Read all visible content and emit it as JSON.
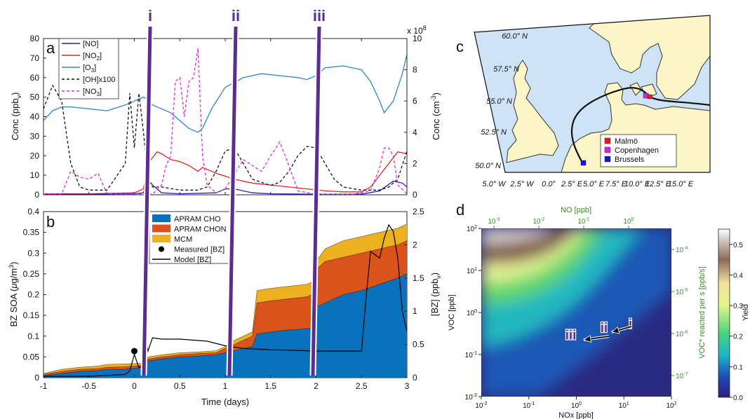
{
  "panels": {
    "a": "a",
    "b": "b",
    "c": "c",
    "d": "d"
  },
  "markers": [
    "i",
    "ii",
    "iii"
  ],
  "panel_a": {
    "ylabel": "Conc (ppb_v)",
    "ylabel_main": "Conc (ppb",
    "ylabel_sub": "v",
    "y2label_main": "Conc (cm",
    "y2label_sup": "-3",
    "y2_exponent": "x 10",
    "y2_exponent_power": "8",
    "legend": [
      {
        "label": "[NO]",
        "color": "#1f1fbf",
        "dash": false
      },
      {
        "label": "[NO",
        "sub": "2",
        "tail": "]",
        "color": "#e8231f",
        "dash": false
      },
      {
        "label": "[O",
        "sub": "3",
        "tail": "]",
        "color": "#2c87c6",
        "dash": false
      },
      {
        "label": "[OH]x100",
        "color": "#111111",
        "dash": true
      },
      {
        "label": "[NO",
        "sub": "3",
        "tail": "]",
        "color": "#e628e6",
        "dash": true
      }
    ]
  },
  "panel_b": {
    "ylabel_main": "BZ SOA (",
    "ylabel_mu": "μ",
    "ylabel_tail": "g/m",
    "ylabel_sup": "3",
    "y2label_main": "[BZ] (ppb",
    "y2label_sub": "v",
    "xlabel": "Time (days)",
    "legend": [
      {
        "label": "APRAM CHO",
        "color": "#0a72bd",
        "kind": "box"
      },
      {
        "label": "APRAM CHON",
        "color": "#d9531b",
        "kind": "box"
      },
      {
        "label": "MCM",
        "color": "#edb021",
        "kind": "box"
      },
      {
        "label": "Measured [BZ]",
        "color": "#000000",
        "kind": "dot"
      },
      {
        "label": "Model [BZ]",
        "color": "#000000",
        "kind": "line"
      }
    ]
  },
  "panel_c": {
    "legend": [
      {
        "label": "Malmö",
        "color": "#e51a1a"
      },
      {
        "label": "Copenhagen",
        "color": "#e020e0"
      },
      {
        "label": "Brussels",
        "color": "#1515d8"
      }
    ],
    "lat_labels": [
      "60.0° N",
      "57.5° N",
      "55.0° N",
      "52.5° N",
      "50.0° N"
    ],
    "lon_labels": [
      "5.0° W",
      "2.5° W",
      "0.0°",
      "2.5° E",
      "5.0° E",
      "7.5° E",
      "10.0° E",
      "12.5° E",
      "15.0° E"
    ]
  },
  "panel_d": {
    "xlabel": "NOx [ppb]",
    "ylabel": "VOC [ppb]",
    "top_label": "NO [ppb]",
    "right_label": "VOC* reacted per s [ppb/s]",
    "colorbar_label": "Yield",
    "colorbar_ticks": [
      "0.0",
      "0.1",
      "0.2",
      "0.3",
      "0.4",
      "0.5"
    ],
    "markers": [
      "iii",
      "ii",
      "i"
    ]
  },
  "colors": {
    "marker_line": "#5b2d8e",
    "top_axis": "#3a8f24",
    "sea": "#cfe3f7",
    "land": "#fbf5c8"
  },
  "chart_data": [
    {
      "type": "line",
      "panel": "a",
      "x_range": [
        -1,
        3
      ],
      "y_range": [
        0,
        80
      ],
      "y2_range": [
        0,
        10
      ],
      "y2_scale": "x 10^8",
      "x_ticks": [
        -1,
        -0.5,
        0,
        0.5,
        1,
        1.5,
        2,
        2.5,
        3
      ],
      "y_ticks": [
        0,
        10,
        20,
        30,
        40,
        50,
        60,
        70,
        80
      ],
      "y2_ticks": [
        0,
        2,
        4,
        6,
        8,
        10
      ],
      "series": [
        {
          "name": "[O3]",
          "axis": "left",
          "x": [
            -1,
            -0.9,
            -0.8,
            -0.7,
            -0.5,
            -0.3,
            -0.1,
            0,
            0.05,
            0.1,
            0.15,
            0.2,
            0.3,
            0.4,
            0.5,
            0.6,
            0.7,
            0.75,
            0.85,
            1.0,
            1.2,
            1.4,
            1.6,
            1.8,
            1.9,
            2.0,
            2.1,
            2.3,
            2.5,
            2.6,
            2.7,
            2.75,
            2.85,
            2.95,
            3.0
          ],
          "y": [
            38,
            43,
            45,
            45,
            44,
            43,
            46,
            48,
            49,
            50,
            49,
            46,
            44,
            42,
            38,
            34,
            32,
            34,
            44,
            55,
            60,
            62,
            61,
            60,
            59,
            61,
            65,
            66,
            64,
            58,
            48,
            42,
            48,
            62,
            72
          ]
        },
        {
          "name": "[NO2]",
          "axis": "left",
          "x": [
            -1,
            -0.5,
            0,
            0.1,
            0.15,
            0.2,
            0.25,
            0.3,
            0.4,
            0.5,
            0.6,
            0.7,
            0.75,
            0.9,
            1.1,
            1.3,
            1.5,
            1.7,
            1.9,
            2.1,
            2.3,
            2.5,
            2.6,
            2.7,
            2.8,
            2.9,
            3.0
          ],
          "y": [
            0.5,
            0.5,
            1,
            3,
            16,
            19,
            22,
            21,
            18,
            17,
            15,
            12,
            14,
            11,
            8,
            6,
            5,
            4,
            3,
            2,
            1.5,
            1.5,
            4,
            10,
            16,
            22,
            21
          ]
        },
        {
          "name": "[NO]",
          "axis": "left",
          "x": [
            -1,
            -0.5,
            0,
            0.1,
            0.15,
            0.2,
            0.3,
            0.5,
            0.9,
            1.0,
            1.1,
            1.3,
            1.5,
            2.0,
            2.5,
            2.7,
            2.85,
            2.95,
            3.0
          ],
          "y": [
            0.3,
            0.3,
            0.5,
            1,
            8,
            5,
            1,
            0.5,
            1,
            3,
            3,
            1,
            0.5,
            0.3,
            0.3,
            2,
            7,
            6,
            4
          ]
        },
        {
          "name": "[OH]x100",
          "axis": "right",
          "x": [
            -1,
            -0.9,
            -0.8,
            -0.7,
            -0.6,
            -0.5,
            -0.3,
            -0.1,
            -0.05,
            0,
            0.05,
            0.1,
            0.15,
            0.2,
            0.3,
            0.5,
            0.7,
            0.8,
            0.9,
            1.0,
            1.1,
            1.2,
            1.3,
            1.4,
            1.5,
            1.6,
            1.7,
            1.8,
            1.9,
            2.0,
            2.1,
            2.2,
            2.3,
            2.5,
            2.7,
            2.8,
            2.9,
            3.0
          ],
          "y": [
            5.5,
            7,
            6,
            2,
            0.5,
            0.3,
            0.3,
            2,
            6.5,
            3,
            6.5,
            4,
            1,
            0.5,
            0.5,
            0.3,
            0.3,
            0.5,
            1.5,
            2.8,
            3,
            2,
            1,
            0.8,
            0.6,
            0.8,
            1.5,
            2.5,
            3.1,
            3,
            2,
            1,
            0.5,
            0.3,
            0.3,
            0.5,
            1,
            2.8
          ]
        },
        {
          "name": "[NO3]",
          "axis": "left",
          "x": [
            -1,
            -0.8,
            -0.7,
            -0.6,
            -0.5,
            -0.4,
            -0.3,
            0.0,
            0.2,
            0.3,
            0.35,
            0.4,
            0.45,
            0.5,
            0.55,
            0.6,
            0.65,
            0.7,
            0.75,
            0.8,
            0.9,
            1.0,
            1.2,
            1.4,
            1.5,
            1.6,
            1.7,
            1.8,
            2.0,
            2.4,
            2.6,
            2.7,
            2.75,
            2.8,
            2.85,
            2.9,
            3.0
          ],
          "y": [
            0.5,
            0.5,
            12,
            9,
            8,
            11,
            0.5,
            0.3,
            0.3,
            5,
            15,
            20,
            58,
            60,
            40,
            58,
            60,
            75,
            20,
            5,
            1,
            3,
            18,
            12,
            20,
            27,
            15,
            2,
            0.3,
            0.3,
            2,
            14,
            24,
            24,
            20,
            5,
            0.5
          ]
        }
      ]
    },
    {
      "type": "area",
      "panel": "b",
      "x_range": [
        -1,
        3
      ],
      "y_range": [
        0,
        0.4
      ],
      "y2_range": [
        0,
        2.5
      ],
      "x_ticks": [
        -1,
        -0.5,
        0,
        0.5,
        1,
        1.5,
        2,
        2.5,
        3
      ],
      "y_ticks": [
        0,
        0.05,
        0.1,
        0.15,
        0.2,
        0.25,
        0.3,
        0.35,
        0.4
      ],
      "y2_ticks": [
        0,
        0.5,
        1,
        1.5,
        2,
        2.5
      ],
      "x": [
        -1,
        -0.8,
        -0.6,
        -0.4,
        -0.3,
        -0.1,
        0.1,
        0.15,
        0.3,
        0.5,
        0.7,
        0.9,
        1.0,
        1.1,
        1.2,
        1.3,
        1.35,
        1.5,
        1.7,
        1.9,
        1.95,
        2.0,
        2.1,
        2.3,
        2.5,
        2.7,
        2.9,
        3.0
      ],
      "series": [
        {
          "name": "APRAM CHO",
          "stack_top": [
            0.005,
            0.01,
            0.015,
            0.017,
            0.02,
            0.02,
            0.025,
            0.04,
            0.045,
            0.05,
            0.052,
            0.055,
            0.06,
            0.065,
            0.07,
            0.075,
            0.105,
            0.11,
            0.115,
            0.118,
            0.12,
            0.17,
            0.18,
            0.2,
            0.21,
            0.225,
            0.24,
            0.25
          ]
        },
        {
          "name": "APRAM CHON",
          "stack_top": [
            0.008,
            0.015,
            0.02,
            0.022,
            0.025,
            0.026,
            0.03,
            0.045,
            0.05,
            0.055,
            0.058,
            0.06,
            0.07,
            0.08,
            0.09,
            0.1,
            0.18,
            0.185,
            0.19,
            0.195,
            0.2,
            0.26,
            0.28,
            0.29,
            0.3,
            0.31,
            0.32,
            0.33
          ]
        },
        {
          "name": "MCM",
          "stack_top": [
            0.01,
            0.02,
            0.025,
            0.028,
            0.032,
            0.033,
            0.035,
            0.05,
            0.055,
            0.06,
            0.062,
            0.065,
            0.075,
            0.09,
            0.1,
            0.11,
            0.21,
            0.215,
            0.22,
            0.225,
            0.23,
            0.28,
            0.31,
            0.33,
            0.34,
            0.35,
            0.36,
            0.37
          ]
        },
        {
          "name": "Model [BZ]",
          "axis": "right",
          "x": [
            -1,
            -0.5,
            -0.1,
            -0.05,
            0.0,
            0.05,
            0.1,
            0.13,
            0.15,
            0.2,
            0.3,
            0.5,
            0.8,
            1.0,
            1.2,
            1.5,
            1.8,
            2.0,
            2.2,
            2.5,
            2.55,
            2.6,
            2.7,
            2.75,
            2.8,
            2.85,
            2.9,
            2.95,
            3.0
          ],
          "y": [
            0.02,
            0.02,
            0.05,
            0.1,
            0.35,
            0.15,
            0.2,
            0.55,
            0.4,
            0.6,
            0.58,
            0.58,
            0.55,
            0.48,
            0.44,
            0.42,
            0.41,
            0.4,
            0.4,
            0.4,
            1.2,
            1.9,
            1.8,
            2.1,
            2.3,
            2.2,
            1.8,
            1.0,
            0.7
          ]
        },
        {
          "name": "Measured [BZ]",
          "axis": "right",
          "x": [
            0
          ],
          "y": [
            0.4
          ]
        }
      ]
    },
    {
      "type": "heatmap",
      "panel": "d",
      "x_scale": "log",
      "y_scale": "log",
      "x_range": [
        0.01,
        100
      ],
      "y_range": [
        0.01,
        100
      ],
      "colorbar_range": [
        0.0,
        0.55
      ],
      "markers": [
        {
          "label": "iii",
          "NOx": 1.0,
          "VOC": 0.3
        },
        {
          "label": "ii",
          "NOx": 5.0,
          "VOC": 0.45
        },
        {
          "label": "i",
          "NOx": 18.0,
          "VOC": 0.55
        }
      ]
    }
  ]
}
